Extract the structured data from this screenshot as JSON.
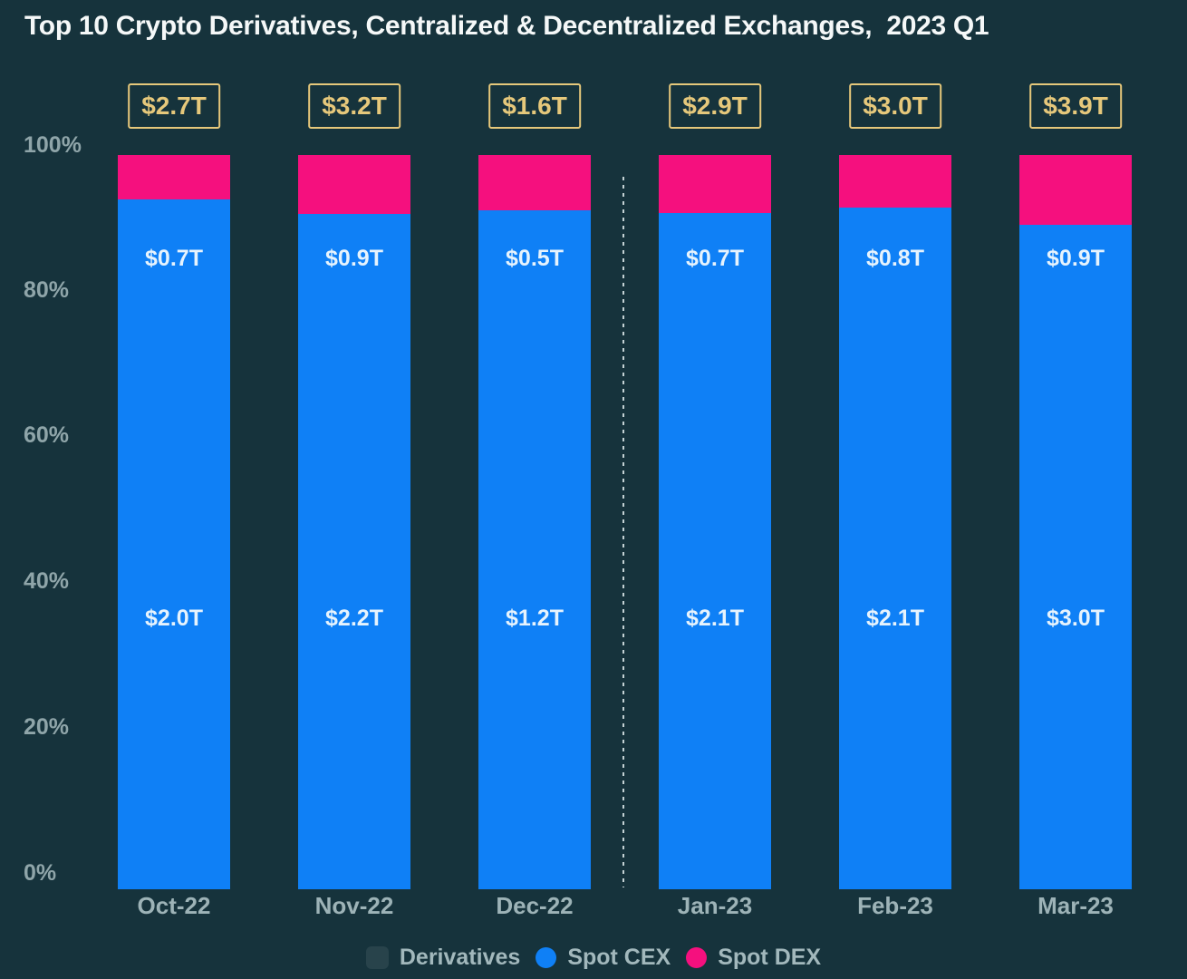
{
  "title": "Top 10 Crypto Derivatives, Centralized & Decentralized Exchanges,  2023 Q1",
  "colors": {
    "background": "#16333C",
    "bar_blue": "#0F80F6",
    "bar_pink": "#F5107E",
    "gold": "#E6C87B",
    "title_text": "#F5F8F8",
    "y_axis_text": "#8FA5A9",
    "x_axis_text": "#9DB3B7",
    "bar_label_text": "#E6F3FD",
    "legend_text": "#A2B8BC",
    "divider": "#C4D2D4"
  },
  "y_axis": {
    "ticks": [
      "100%",
      "80%",
      "60%",
      "40%",
      "20%",
      "0%"
    ]
  },
  "legend": {
    "items": [
      {
        "label": "Derivatives",
        "marker": "faint-square",
        "color": "rgba(255,255,255,0.08)"
      },
      {
        "label": "Spot CEX",
        "marker": "circle",
        "color": "#0F80F6"
      },
      {
        "label": "Spot DEX",
        "marker": "circle",
        "color": "#F5107E"
      }
    ]
  },
  "chart_data": {
    "type": "bar",
    "stacked": true,
    "normalized_to_100pct": true,
    "title": "Top 10 Crypto Derivatives, Centralized & Decentralized Exchanges,  2023 Q1",
    "unit": "trillion USD",
    "categories": [
      "Oct-22",
      "Nov-22",
      "Dec-22",
      "Jan-23",
      "Feb-23",
      "Mar-23"
    ],
    "derivatives_box_labels": [
      "$2.7T",
      "$3.2T",
      "$1.6T",
      "$2.9T",
      "$3.0T",
      "$3.9T"
    ],
    "upper_bar_labels": [
      "$0.7T",
      "$0.9T",
      "$0.5T",
      "$0.7T",
      "$0.8T",
      "$0.9T"
    ],
    "lower_bar_labels": [
      "$2.0T",
      "$2.2T",
      "$1.2T",
      "$2.1T",
      "$2.1T",
      "$3.0T"
    ],
    "series": [
      {
        "name": "Spot CEX",
        "share_pct": [
          94.0,
          92.0,
          92.5,
          92.1,
          92.8,
          90.5
        ]
      },
      {
        "name": "Spot DEX",
        "share_pct": [
          6.0,
          8.0,
          7.5,
          7.9,
          7.2,
          9.5
        ]
      }
    ],
    "ylim": [
      0,
      100
    ],
    "ylabel": "",
    "xlabel": "",
    "grid": false,
    "legend_position": "bottom-center",
    "quarter_divider_after_category": "Dec-22"
  }
}
